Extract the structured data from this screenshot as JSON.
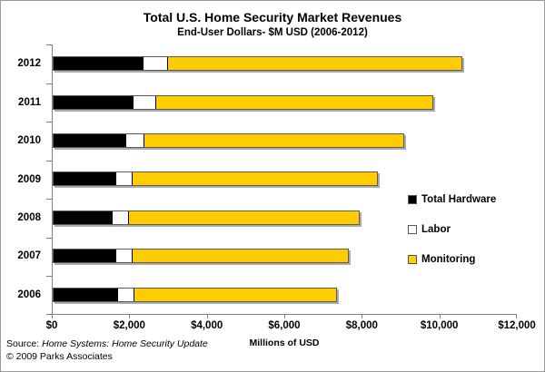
{
  "chart_data": {
    "type": "bar",
    "orientation": "horizontal",
    "stacked": true,
    "title": "Total U.S. Home Security Market Revenues",
    "subtitle": "End-User Dollars- $M USD (2006-2012)",
    "categories": [
      "2012",
      "2011",
      "2010",
      "2009",
      "2008",
      "2007",
      "2006"
    ],
    "series": [
      {
        "name": "Total Hardware",
        "color": "#000000",
        "values": [
          2300,
          2050,
          1850,
          1600,
          1500,
          1600,
          1650
        ]
      },
      {
        "name": "Labor",
        "color": "#FFFFFF",
        "values": [
          650,
          600,
          500,
          450,
          450,
          450,
          450
        ]
      },
      {
        "name": "Monitoring",
        "color": "#FFCC00",
        "values": [
          7600,
          7150,
          6700,
          6300,
          5950,
          5550,
          5200
        ]
      }
    ],
    "totals": [
      10550,
      9800,
      9050,
      8350,
      7900,
      7600,
      7300
    ],
    "xlabel": "Millions of USD",
    "x_ticks": [
      "$0",
      "$2,000",
      "$4,000",
      "$6,000",
      "$8,000",
      "$10,000",
      "$12,000"
    ],
    "xlim": [
      0,
      12000
    ],
    "grid": false,
    "legend_position": "inside-right",
    "axis_color": "#808080"
  },
  "footer": {
    "source_prefix": "Source: ",
    "source_title": "Home Systems: Home Security Update",
    "copyright": "© 2009 Parks Associates"
  }
}
